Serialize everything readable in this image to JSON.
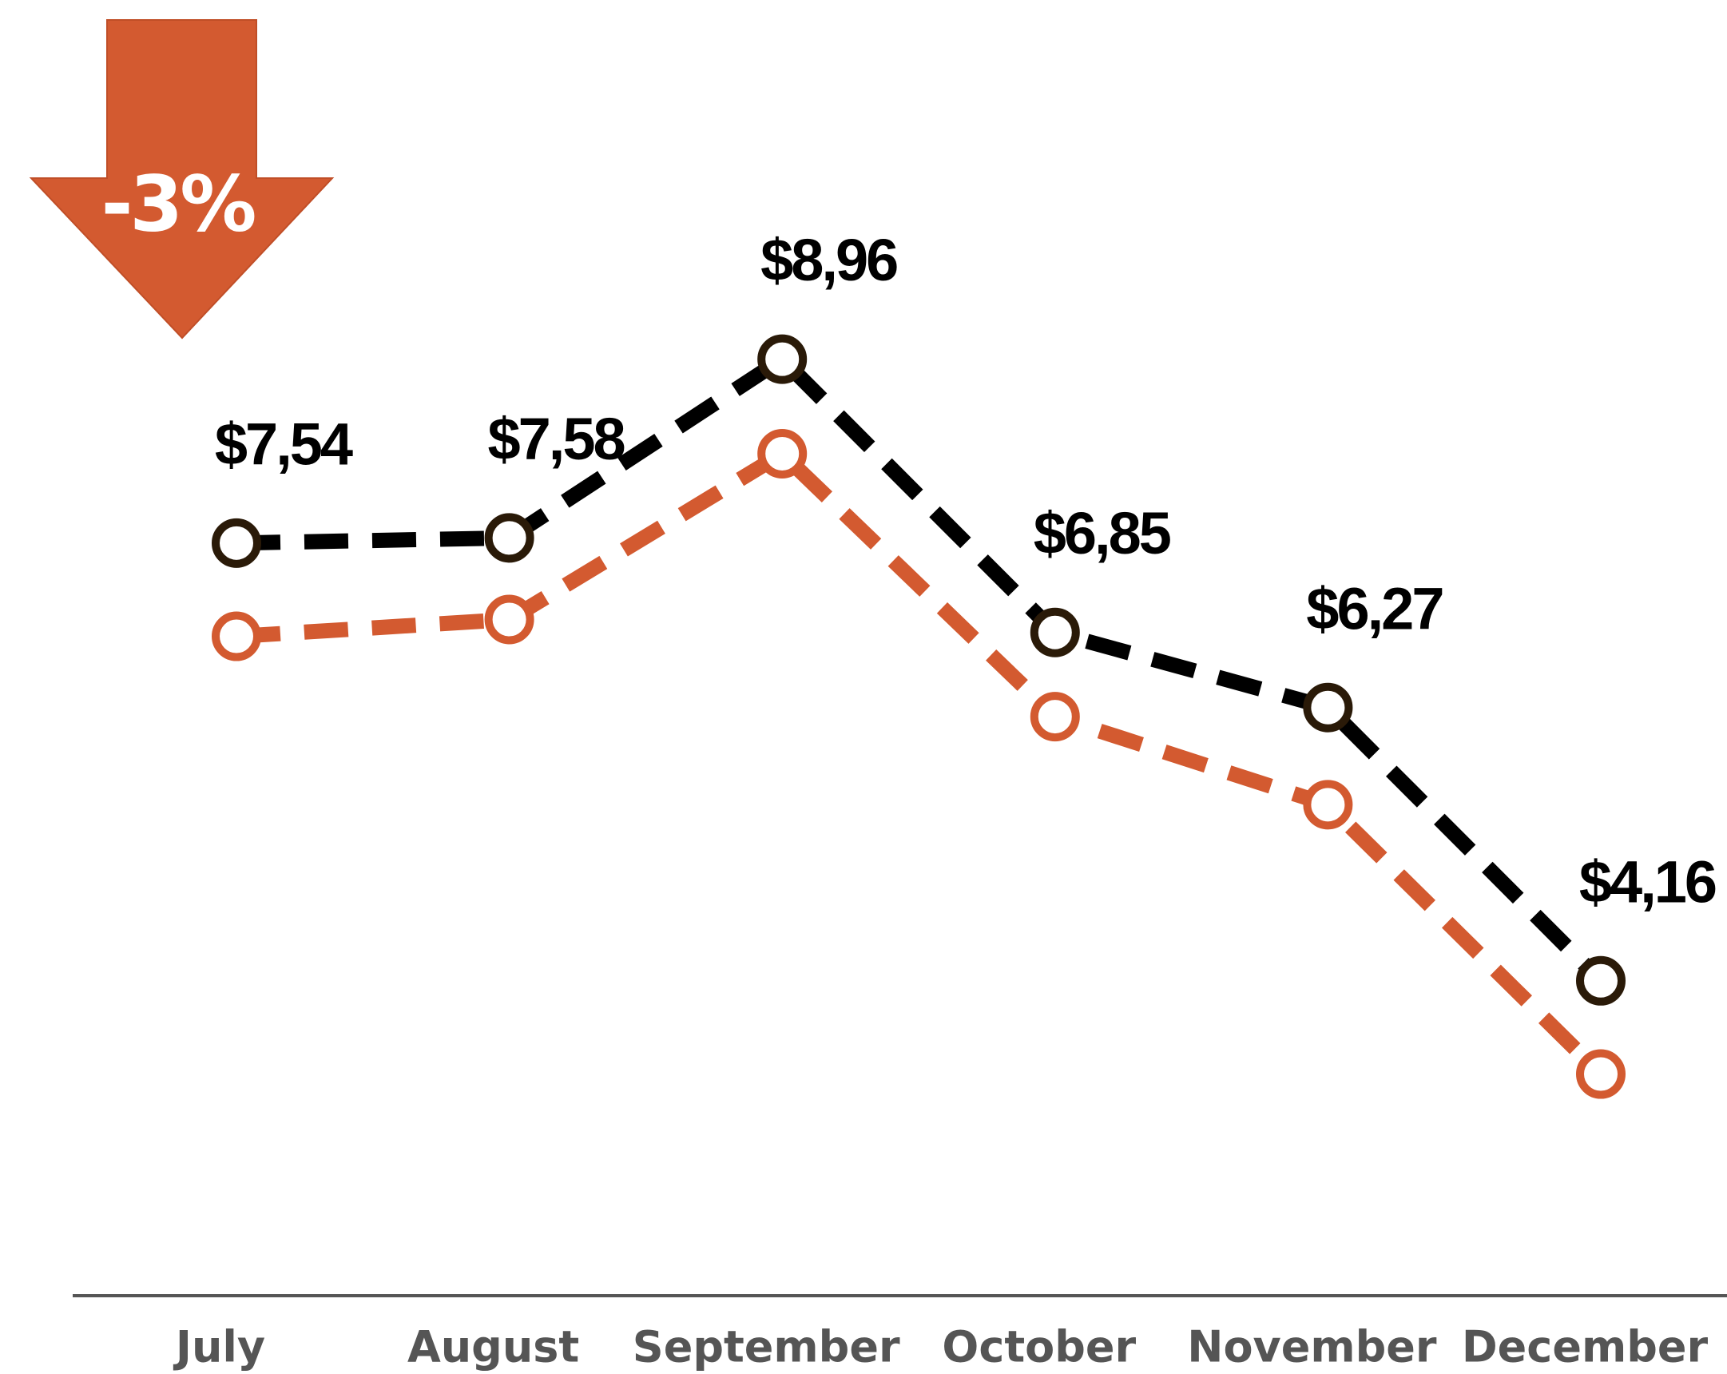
{
  "chart_data": {
    "type": "line",
    "annotation": "-3%",
    "categories": [
      "July",
      "August",
      "September",
      "October",
      "November",
      "December"
    ],
    "series": [
      {
        "color": "#000000",
        "values": [
          7.54,
          7.58,
          8.96,
          6.85,
          6.27,
          4.16
        ],
        "value_labels": [
          "$7,54",
          "$7,58",
          "$8,96",
          "$6,85",
          "$6,27",
          "$4,16"
        ]
      },
      {
        "color": "#d35a30",
        "values": [
          6.82,
          6.95,
          8.23,
          6.2,
          5.52,
          3.44
        ]
      }
    ],
    "ylim": [
      2,
      10
    ]
  }
}
